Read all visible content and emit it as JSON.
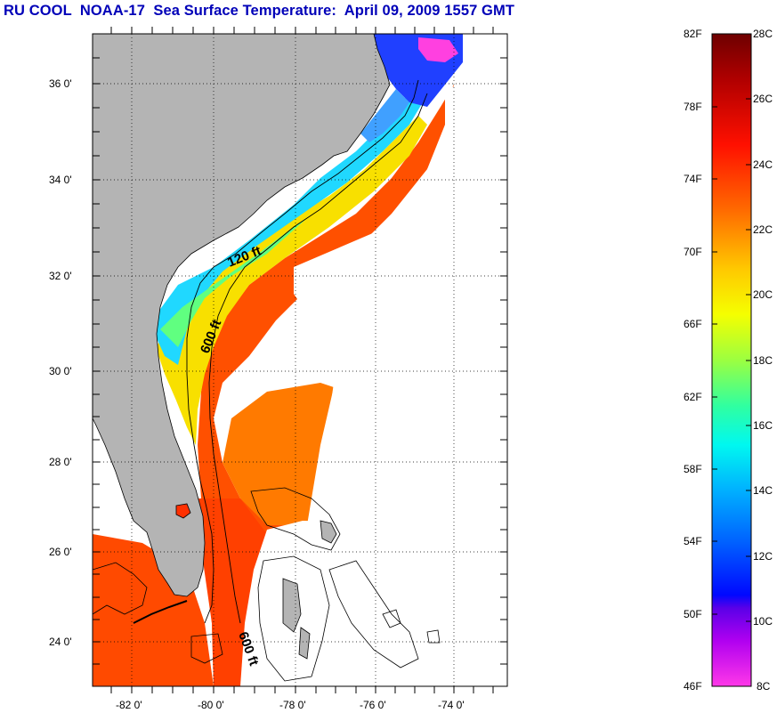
{
  "title": "RU COOL  NOAA-17  Sea Surface Temperature:  April 09, 2009 1557 GMT",
  "map": {
    "lat_labels": [
      "36 0'",
      "34 0'",
      "32 0'",
      "30 0'",
      "28 0'",
      "26 0'",
      "24 0'"
    ],
    "lon_labels": [
      "-82 0'",
      "-80 0'",
      "-78 0'",
      "-76 0'",
      "-74 0'"
    ],
    "contour_labels": [
      "120 ft",
      "600 ft",
      "600 ft"
    ],
    "land_color": "#b4b4b4",
    "cloud_color": "#ffffff"
  },
  "colorbar": {
    "fahrenheit_labels": [
      "82F",
      "78F",
      "74F",
      "70F",
      "66F",
      "62F",
      "58F",
      "54F",
      "50F",
      "46F"
    ],
    "celsius_labels": [
      "28C",
      "26C",
      "24C",
      "22C",
      "20C",
      "18C",
      "16C",
      "14C",
      "12C",
      "10C",
      "8C"
    ],
    "colors_top_to_bottom": [
      "#7a0000",
      "#c00000",
      "#ff1a00",
      "#ff5a00",
      "#ff9a00",
      "#ffd800",
      "#f0ff00",
      "#a8ff30",
      "#40ff90",
      "#00ffe0",
      "#00b8ff",
      "#0068ff",
      "#0010ff",
      "#6800e8",
      "#d000f0",
      "#ff30e0"
    ]
  }
}
